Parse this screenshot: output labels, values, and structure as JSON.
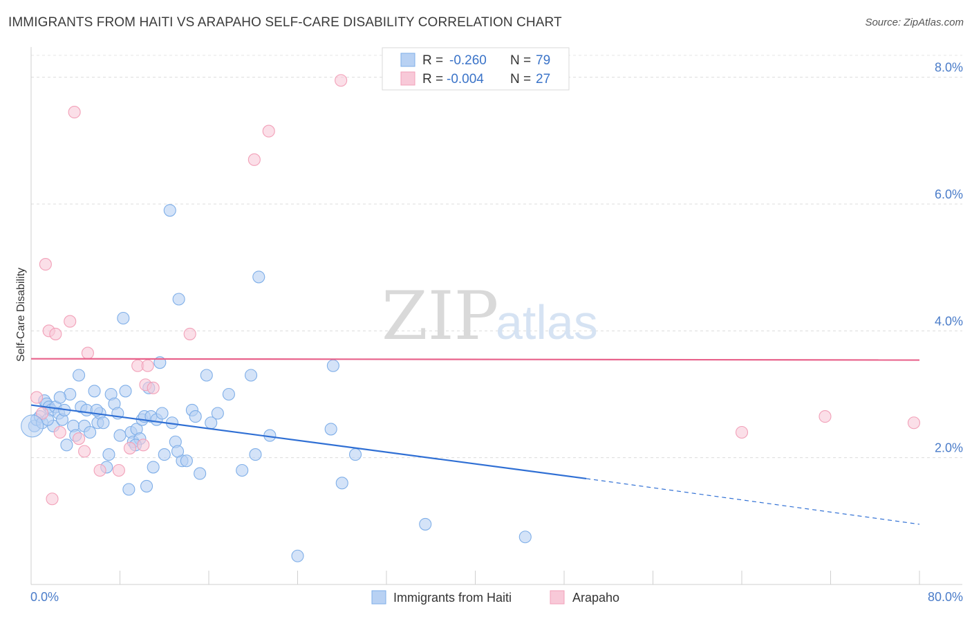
{
  "title": "IMMIGRANTS FROM HAITI VS ARAPAHO SELF-CARE DISABILITY CORRELATION CHART",
  "source": "Source: ZipAtlas.com",
  "watermark": {
    "zip": "ZIP",
    "atlas": "atlas"
  },
  "legend_top": [
    {
      "r_label": "R =",
      "r_value": "-0.260",
      "n_label": "N =",
      "n_value": "79"
    },
    {
      "r_label": "R =",
      "r_value": "-0.004",
      "n_label": "N =",
      "n_value": "27"
    }
  ],
  "chart_data": {
    "type": "scatter",
    "ylabel": "Self-Care Disability",
    "xlim": [
      0,
      80
    ],
    "ylim": [
      0,
      8.4
    ],
    "x_tick_labels": [
      "0.0%",
      "80.0%"
    ],
    "y_ticks": [
      2,
      4,
      6,
      8
    ],
    "y_tick_labels": [
      "2.0%",
      "4.0%",
      "6.0%",
      "8.0%"
    ],
    "grid": true,
    "legend_position": "bottom",
    "series": [
      {
        "name": "Immigrants from Haiti",
        "color": "#7eaee8",
        "fill": "#b8d1f3",
        "trend": {
          "x0": 0,
          "y0": 2.83,
          "x1": 50,
          "y1": 1.67,
          "dash_to_x": 80,
          "dash_to_y": 0.95,
          "color": "#2f6fd4"
        },
        "points": [
          [
            0.3,
            2.5
          ],
          [
            0.5,
            2.6
          ],
          [
            0.8,
            2.65
          ],
          [
            1.0,
            2.55
          ],
          [
            1.2,
            2.9
          ],
          [
            1.4,
            2.85
          ],
          [
            1.6,
            2.8
          ],
          [
            1.8,
            2.75
          ],
          [
            2.0,
            2.5
          ],
          [
            2.2,
            2.8
          ],
          [
            2.5,
            2.7
          ],
          [
            2.8,
            2.6
          ],
          [
            3.0,
            2.75
          ],
          [
            3.2,
            2.2
          ],
          [
            3.5,
            3.0
          ],
          [
            3.8,
            2.5
          ],
          [
            4.0,
            2.35
          ],
          [
            4.3,
            3.3
          ],
          [
            4.5,
            2.8
          ],
          [
            4.8,
            2.5
          ],
          [
            5.0,
            2.75
          ],
          [
            5.3,
            2.4
          ],
          [
            5.7,
            3.05
          ],
          [
            6.0,
            2.55
          ],
          [
            6.2,
            2.7
          ],
          [
            6.5,
            2.55
          ],
          [
            6.8,
            1.85
          ],
          [
            7.0,
            2.05
          ],
          [
            7.2,
            3.0
          ],
          [
            7.5,
            2.85
          ],
          [
            7.8,
            2.7
          ],
          [
            8.0,
            2.35
          ],
          [
            8.3,
            4.2
          ],
          [
            8.5,
            3.05
          ],
          [
            8.8,
            1.5
          ],
          [
            9.0,
            2.4
          ],
          [
            9.2,
            2.25
          ],
          [
            9.5,
            2.45
          ],
          [
            9.8,
            2.3
          ],
          [
            10.0,
            2.6
          ],
          [
            10.2,
            2.65
          ],
          [
            10.4,
            1.55
          ],
          [
            10.6,
            3.1
          ],
          [
            10.8,
            2.65
          ],
          [
            11.0,
            1.85
          ],
          [
            11.3,
            2.6
          ],
          [
            11.6,
            3.5
          ],
          [
            11.8,
            2.7
          ],
          [
            12.0,
            2.05
          ],
          [
            12.5,
            5.9
          ],
          [
            12.7,
            2.55
          ],
          [
            13.0,
            2.25
          ],
          [
            13.3,
            4.5
          ],
          [
            13.6,
            1.95
          ],
          [
            14.0,
            1.95
          ],
          [
            14.5,
            2.75
          ],
          [
            14.8,
            2.65
          ],
          [
            15.2,
            1.75
          ],
          [
            15.8,
            3.3
          ],
          [
            16.2,
            2.55
          ],
          [
            16.8,
            2.7
          ],
          [
            17.8,
            3.0
          ],
          [
            19.0,
            1.8
          ],
          [
            19.8,
            3.3
          ],
          [
            20.2,
            2.05
          ],
          [
            20.5,
            4.85
          ],
          [
            21.5,
            2.35
          ],
          [
            24.0,
            0.45
          ],
          [
            27.0,
            2.45
          ],
          [
            27.2,
            3.45
          ],
          [
            28.0,
            1.6
          ],
          [
            29.2,
            2.05
          ],
          [
            35.5,
            0.95
          ],
          [
            44.5,
            0.75
          ],
          [
            1.5,
            2.6
          ],
          [
            2.6,
            2.95
          ],
          [
            5.9,
            2.75
          ],
          [
            9.4,
            2.2
          ],
          [
            13.2,
            2.1
          ]
        ]
      },
      {
        "name": "Arapaho",
        "color": "#f2a0b8",
        "fill": "#f8c9d8",
        "trend": {
          "x0": 0,
          "y0": 3.56,
          "x1": 80,
          "y1": 3.54,
          "color": "#e8628b"
        },
        "points": [
          [
            0.5,
            2.95
          ],
          [
            1.0,
            2.7
          ],
          [
            1.3,
            5.05
          ],
          [
            1.6,
            4.0
          ],
          [
            1.9,
            1.35
          ],
          [
            2.2,
            3.95
          ],
          [
            2.6,
            2.4
          ],
          [
            3.5,
            4.15
          ],
          [
            3.9,
            7.45
          ],
          [
            4.3,
            2.3
          ],
          [
            4.8,
            2.1
          ],
          [
            5.1,
            3.65
          ],
          [
            6.2,
            1.8
          ],
          [
            7.9,
            1.8
          ],
          [
            8.9,
            2.15
          ],
          [
            9.6,
            3.45
          ],
          [
            10.1,
            2.2
          ],
          [
            10.3,
            3.15
          ],
          [
            10.5,
            3.45
          ],
          [
            14.3,
            3.95
          ],
          [
            20.1,
            6.7
          ],
          [
            21.4,
            7.15
          ],
          [
            27.9,
            7.95
          ],
          [
            64.0,
            2.4
          ],
          [
            71.5,
            2.65
          ],
          [
            79.5,
            2.55
          ],
          [
            11.0,
            3.1
          ]
        ]
      }
    ]
  }
}
